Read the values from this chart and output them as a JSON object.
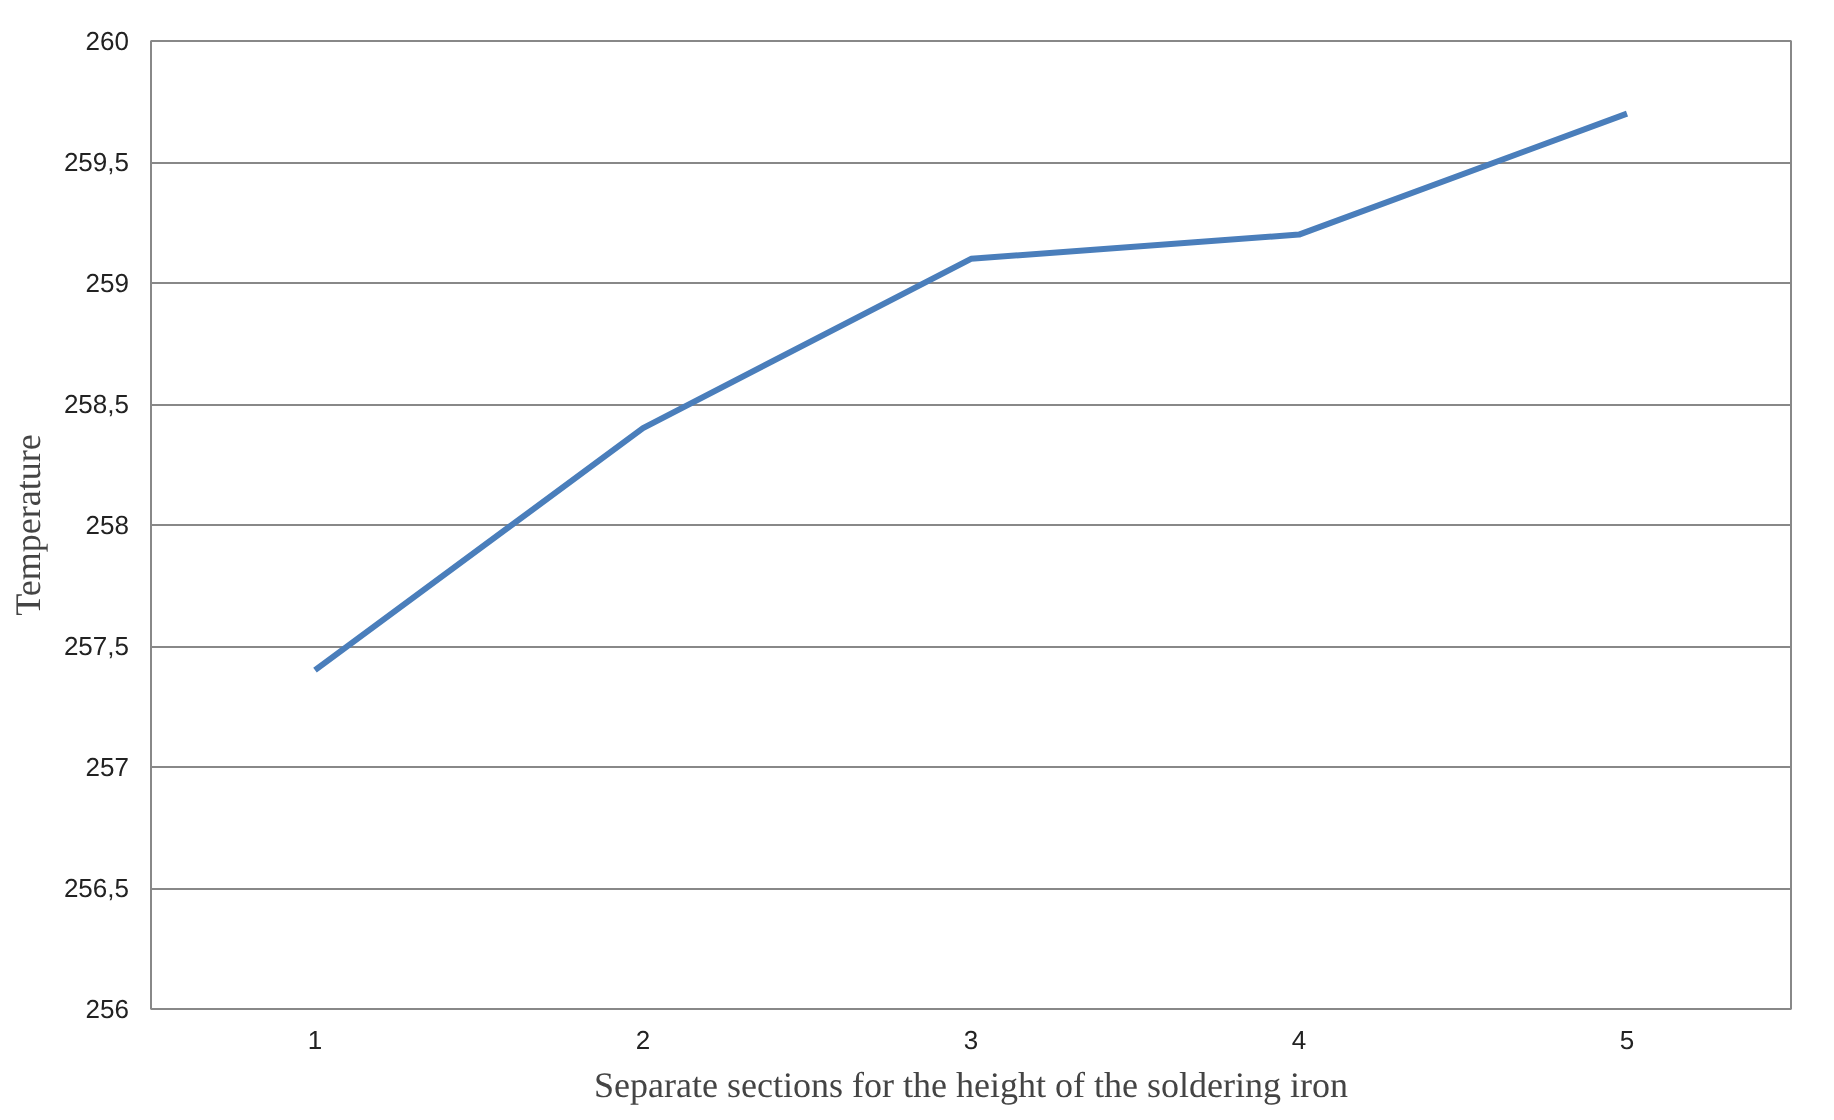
{
  "chart_data": {
    "type": "line",
    "xlabel": "Separate sections for the height of the soldering iron",
    "ylabel": "Temperature",
    "categories": [
      "1",
      "2",
      "3",
      "4",
      "5"
    ],
    "series": [
      {
        "color": "#4a7ebb",
        "values": [
          257.4,
          258.4,
          259.1,
          259.2,
          259.7
        ]
      }
    ],
    "ylim": [
      256,
      260
    ],
    "yticks": [
      256,
      {
        "value": 256.5,
        "label": "256,5"
      },
      257,
      {
        "value": 257.5,
        "label": "257,5"
      },
      258,
      {
        "value": 258.5,
        "label": "258,5"
      },
      259,
      {
        "value": 259.5,
        "label": "259,5"
      },
      260
    ],
    "grid": "y",
    "marker": "none",
    "line_style": "solid"
  }
}
